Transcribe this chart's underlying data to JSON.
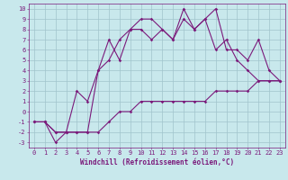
{
  "background_color": "#c8e8ec",
  "grid_color": "#a0c4cc",
  "line_color": "#7b1a7b",
  "xlabel": "Windchill (Refroidissement éolien,°C)",
  "xlabel_fontsize": 5.5,
  "tick_fontsize": 5,
  "xlim": [
    -0.5,
    23.5
  ],
  "ylim": [
    -3.5,
    10.5
  ],
  "xticks": [
    0,
    1,
    2,
    3,
    4,
    5,
    6,
    7,
    8,
    9,
    10,
    11,
    12,
    13,
    14,
    15,
    16,
    17,
    18,
    19,
    20,
    21,
    22,
    23
  ],
  "yticks": [
    -3,
    -2,
    -1,
    0,
    1,
    2,
    3,
    4,
    5,
    6,
    7,
    8,
    9,
    10
  ],
  "line1_x": [
    0,
    1,
    2,
    3,
    4,
    5,
    6,
    7,
    8,
    9,
    10,
    11,
    12,
    13,
    14,
    15,
    16,
    17,
    18,
    19,
    20,
    21,
    22,
    23
  ],
  "line1_y": [
    -1,
    -1,
    -2,
    -2,
    -2,
    -2,
    -2,
    -1,
    0,
    0,
    1,
    1,
    1,
    1,
    1,
    1,
    1,
    2,
    2,
    2,
    2,
    3,
    3,
    3
  ],
  "line2_x": [
    0,
    1,
    2,
    3,
    4,
    5,
    6,
    7,
    8,
    9,
    10,
    11,
    12,
    13,
    14,
    15,
    16,
    17,
    18,
    19,
    20,
    21,
    22,
    23
  ],
  "line2_y": [
    -1,
    -1,
    -3,
    -2,
    2,
    1,
    4,
    7,
    5,
    8,
    9,
    9,
    8,
    7,
    10,
    8,
    9,
    10,
    6,
    6,
    5,
    7,
    4,
    3
  ],
  "line3_x": [
    0,
    1,
    2,
    3,
    4,
    5,
    6,
    7,
    8,
    9,
    10,
    11,
    12,
    13,
    14,
    15,
    16,
    17,
    18,
    19,
    20,
    21,
    22,
    23
  ],
  "line3_y": [
    -1,
    -1,
    -2,
    -2,
    -2,
    -2,
    4,
    5,
    7,
    8,
    8,
    7,
    8,
    7,
    9,
    8,
    9,
    6,
    7,
    5,
    4,
    3,
    3,
    3
  ],
  "marker_size": 1.8,
  "line_width": 0.8
}
